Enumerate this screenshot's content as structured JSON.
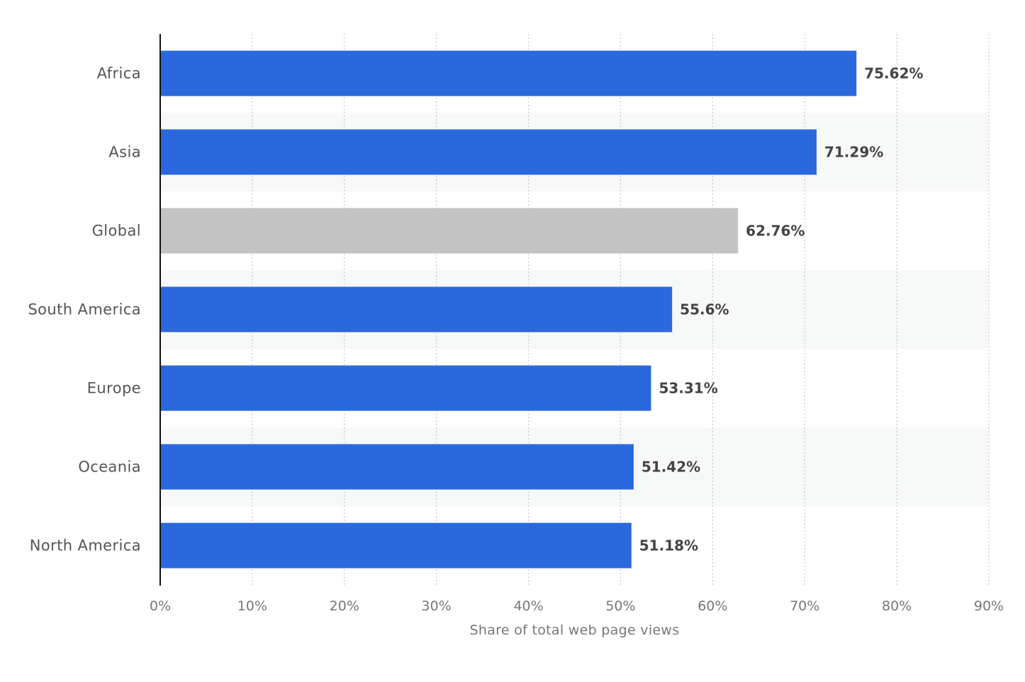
{
  "chart_data": {
    "type": "bar",
    "orientation": "horizontal",
    "categories": [
      "Africa",
      "Asia",
      "Global",
      "South America",
      "Europe",
      "Oceania",
      "North America"
    ],
    "values": [
      75.62,
      71.29,
      62.76,
      55.6,
      53.31,
      51.42,
      51.18
    ],
    "value_labels": [
      "75.62%",
      "71.29%",
      "62.76%",
      "55.6%",
      "53.31%",
      "51.42%",
      "51.18%"
    ],
    "highlight_category": "Global",
    "xlabel": "Share of total web page views",
    "ylabel": "",
    "xlim": [
      0,
      90
    ],
    "x_ticks": [
      0,
      10,
      20,
      30,
      40,
      50,
      60,
      70,
      80,
      90
    ],
    "x_tick_labels": [
      "0%",
      "10%",
      "20%",
      "30%",
      "40%",
      "50%",
      "60%",
      "70%",
      "80%",
      "90%"
    ],
    "grid": true,
    "legend": "none",
    "colors": {
      "bar": "#2a68de",
      "highlight_bar": "#c3c3c3",
      "band": "#f7f8f8",
      "grid": "#cccccc",
      "axis": "#111111"
    }
  }
}
